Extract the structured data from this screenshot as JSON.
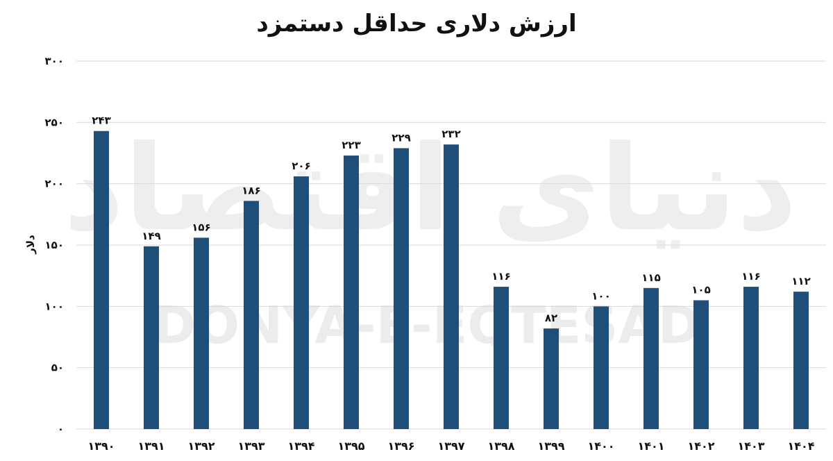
{
  "chart_data": {
    "type": "bar",
    "title": "ارزش دلاری حداقل دستمزد",
    "xlabel": "",
    "ylabel": "دلار",
    "ylim": [
      0,
      300
    ],
    "yticks": [
      0,
      50,
      100,
      150,
      200,
      250,
      300
    ],
    "ytick_labels": [
      "۰",
      "۵۰",
      "۱۰۰",
      "۱۵۰",
      "۲۰۰",
      "۲۵۰",
      "۳۰۰"
    ],
    "grid": true,
    "legend": "none",
    "categories": [
      "۱۳۹۰",
      "۱۳۹۱",
      "۱۳۹۲",
      "۱۳۹۳",
      "۱۳۹۴",
      "۱۳۹۵",
      "۱۳۹۶",
      "۱۳۹۷",
      "۱۳۹۸",
      "۱۳۹۹",
      "۱۴۰۰",
      "۱۴۰۱",
      "۱۴۰۲",
      "۱۴۰۳",
      "۱۴۰۴"
    ],
    "values": [
      243,
      149,
      156,
      186,
      206,
      223,
      229,
      232,
      116,
      82,
      100,
      115,
      105,
      116,
      112
    ],
    "value_labels": [
      "۲۴۳",
      "۱۴۹",
      "۱۵۶",
      "۱۸۶",
      "۲۰۶",
      "۲۲۳",
      "۲۲۹",
      "۲۳۲",
      "۱۱۶",
      "۸۲",
      "۱۰۰",
      "۱۱۵",
      "۱۰۵",
      "۱۱۶",
      "۱۱۲"
    ],
    "bar_color": "#1f4e79"
  },
  "watermark": {
    "text": "DONYA-E-EQTESAD",
    "logo_text": "دنیای اقتصاد"
  },
  "colors": {
    "bar": "#1f4e79",
    "grid": "#d9d9d9",
    "text": "#111111",
    "watermark": "#ebebeb"
  }
}
